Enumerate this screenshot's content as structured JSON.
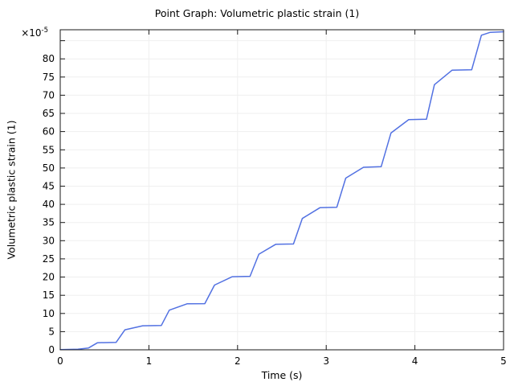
{
  "chart_data": {
    "type": "line",
    "title": "Point Graph: Volumetric plastic strain (1)",
    "xlabel": "Time (s)",
    "ylabel": "Volumetric plastic strain (1)",
    "y_multiplier": {
      "base": "×10",
      "exp": "-5"
    },
    "y_unit_scale": "1e-5",
    "xlim": [
      0,
      5
    ],
    "ylim": [
      0,
      88
    ],
    "x_ticks": [
      0,
      1,
      2,
      3,
      4,
      5
    ],
    "y_ticks": [
      0,
      5,
      10,
      15,
      20,
      25,
      30,
      35,
      40,
      45,
      50,
      55,
      60,
      65,
      70,
      75,
      80,
      85
    ],
    "y_tick_labels": [
      0,
      5,
      10,
      15,
      20,
      25,
      30,
      35,
      40,
      45,
      50,
      55,
      60,
      65,
      70,
      75,
      80
    ],
    "grid": true,
    "legend": false,
    "colors": {
      "line": "#5271e2",
      "grid": "#efefef",
      "frame": "#1a1a1a",
      "text": "#000000",
      "background": "#ffffff"
    },
    "series": [
      {
        "name": "Volumetric plastic strain (1)",
        "color": "#5271e2",
        "points": [
          [
            0.0,
            0.05
          ],
          [
            0.2,
            0.15
          ],
          [
            0.32,
            0.5
          ],
          [
            0.42,
            1.95
          ],
          [
            0.63,
            2.05
          ],
          [
            0.73,
            5.5
          ],
          [
            0.93,
            6.6
          ],
          [
            1.14,
            6.7
          ],
          [
            1.23,
            10.9
          ],
          [
            1.43,
            12.65
          ],
          [
            1.63,
            12.7
          ],
          [
            1.74,
            17.8
          ],
          [
            1.94,
            20.1
          ],
          [
            2.14,
            20.2
          ],
          [
            2.24,
            26.3
          ],
          [
            2.43,
            29.0
          ],
          [
            2.63,
            29.1
          ],
          [
            2.73,
            36.1
          ],
          [
            2.93,
            39.1
          ],
          [
            3.12,
            39.2
          ],
          [
            3.22,
            47.2
          ],
          [
            3.42,
            50.2
          ],
          [
            3.62,
            50.35
          ],
          [
            3.73,
            59.6
          ],
          [
            3.93,
            63.3
          ],
          [
            4.13,
            63.4
          ],
          [
            4.22,
            72.9
          ],
          [
            4.42,
            76.9
          ],
          [
            4.64,
            77.0
          ],
          [
            4.75,
            86.5
          ],
          [
            4.85,
            87.3
          ],
          [
            5.0,
            87.45
          ]
        ]
      }
    ]
  }
}
